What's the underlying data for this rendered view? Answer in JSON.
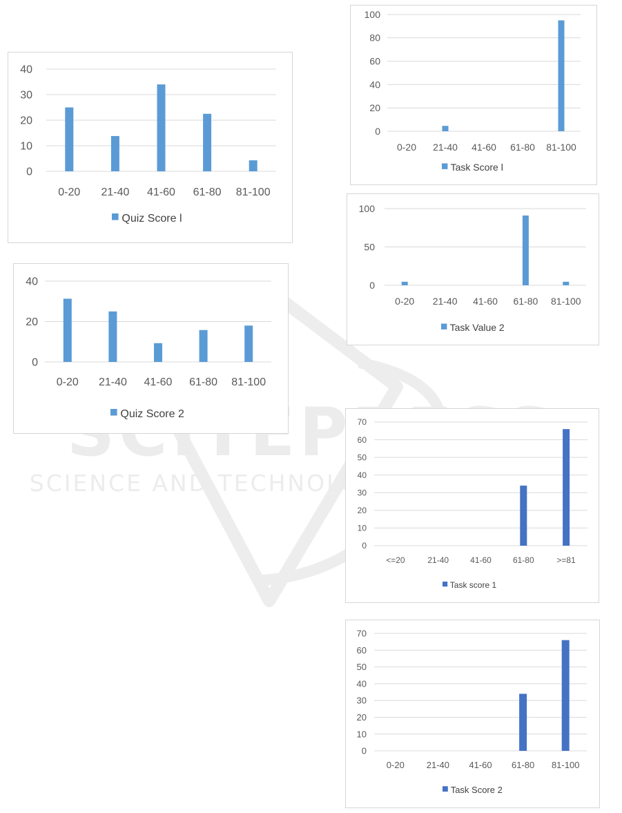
{
  "watermark": {
    "title": "SCITEPRESS",
    "subtitle": "SCIENCE AND TECHNOLOGY PUBLICATIONS",
    "color": "#ececec"
  },
  "chart_data": [
    {
      "id": "quiz-score-1",
      "type": "bar",
      "categories": [
        "0-20",
        "21-40",
        "41-60",
        "61-80",
        "81-100"
      ],
      "series": [
        {
          "name": "Quiz Score l",
          "values": [
            25,
            13.8,
            34,
            22.5,
            4.3
          ]
        }
      ],
      "ylim": [
        0,
        40
      ],
      "yticks": [
        "0",
        "10",
        "20",
        "30",
        "40"
      ],
      "ytick_values": [
        0,
        10,
        20,
        30,
        40
      ],
      "grid": true,
      "legend": "bottom",
      "bar_color": "#5b9bd5"
    },
    {
      "id": "quiz-score-2",
      "type": "bar",
      "categories": [
        "0-20",
        "21-40",
        "41-60",
        "61-80",
        "81-100"
      ],
      "series": [
        {
          "name": "Quiz Score  2",
          "values": [
            31.3,
            25,
            9.3,
            15.8,
            18
          ]
        }
      ],
      "ylim": [
        0,
        40
      ],
      "yticks": [
        "0",
        "20",
        "40"
      ],
      "ytick_values": [
        0,
        20,
        40
      ],
      "grid": true,
      "legend": "bottom",
      "bar_color": "#5b9bd5"
    },
    {
      "id": "task-score-1-top",
      "type": "bar",
      "categories": [
        "0-20",
        "21-40",
        "41-60",
        "61-80",
        "81-100"
      ],
      "series": [
        {
          "name": "Task Score  l",
          "values": [
            0,
            4.6,
            0,
            0,
            95
          ]
        }
      ],
      "ylim": [
        0,
        100
      ],
      "yticks": [
        "0",
        "20",
        "40",
        "60",
        "80",
        "100"
      ],
      "ytick_values": [
        0,
        20,
        40,
        60,
        80,
        100
      ],
      "grid": true,
      "legend": "bottom",
      "bar_color": "#5b9bd5"
    },
    {
      "id": "task-value-2",
      "type": "bar",
      "categories": [
        "0-20",
        "21-40",
        "41-60",
        "61-80",
        "81-100"
      ],
      "series": [
        {
          "name": "Task Value 2",
          "values": [
            4.6,
            0,
            0,
            91,
            4.6
          ]
        }
      ],
      "ylim": [
        0,
        100
      ],
      "yticks": [
        "0",
        "50",
        "100"
      ],
      "ytick_values": [
        0,
        50,
        100
      ],
      "grid": true,
      "legend": "bottom",
      "bar_color": "#5b9bd5"
    },
    {
      "id": "task-score-1-bottom",
      "type": "bar",
      "categories": [
        "<=20",
        "21-40",
        "41-60",
        "61-80",
        ">=81"
      ],
      "series": [
        {
          "name": "Task score 1",
          "values": [
            0,
            0,
            0,
            34,
            66
          ]
        }
      ],
      "ylim": [
        0,
        70
      ],
      "yticks": [
        "0",
        "10",
        "20",
        "30",
        "40",
        "50",
        "60",
        "70"
      ],
      "ytick_values": [
        0,
        10,
        20,
        30,
        40,
        50,
        60,
        70
      ],
      "grid": true,
      "legend": "bottom",
      "bar_color": "#4472c4"
    },
    {
      "id": "task-score-2",
      "type": "bar",
      "categories": [
        "0-20",
        "21-40",
        "41-60",
        "61-80",
        "81-100"
      ],
      "series": [
        {
          "name": "Task Score 2",
          "values": [
            0,
            0,
            0,
            34,
            66
          ]
        }
      ],
      "ylim": [
        0,
        70
      ],
      "yticks": [
        "0",
        "10",
        "20",
        "30",
        "40",
        "50",
        "60",
        "70"
      ],
      "ytick_values": [
        0,
        10,
        20,
        30,
        40,
        50,
        60,
        70
      ],
      "grid": true,
      "legend": "bottom",
      "bar_color": "#4472c4"
    }
  ]
}
